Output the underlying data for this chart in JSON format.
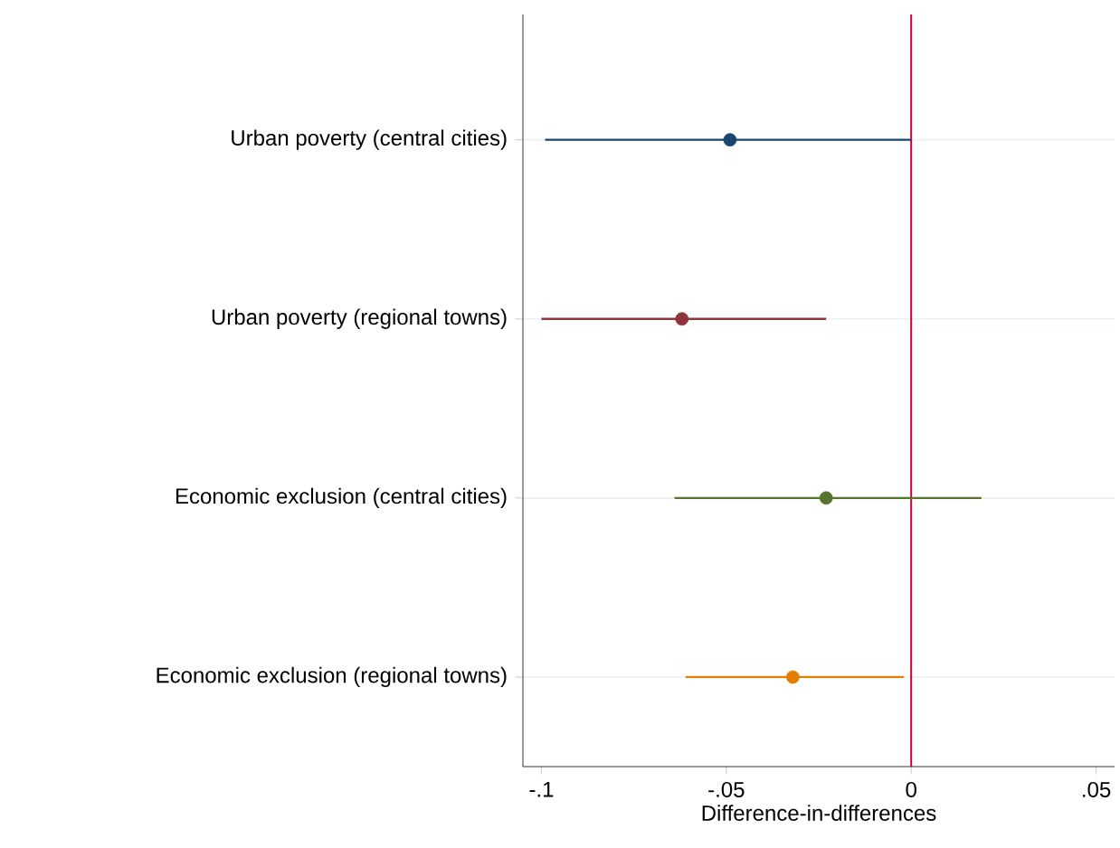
{
  "chart_data": {
    "type": "scatter",
    "orientation": "horizontal",
    "xlabel": "Difference-in-differences",
    "categories": [
      "Urban poverty (central cities)",
      "Urban poverty (regional towns)",
      "Economic exclusion (central cities)",
      "Economic exclusion (regional towns)"
    ],
    "values": [
      -0.049,
      -0.062,
      -0.023,
      -0.032
    ],
    "errors": [
      [
        -0.099,
        0.0
      ],
      [
        -0.1,
        -0.023
      ],
      [
        -0.064,
        0.019
      ],
      [
        -0.061,
        -0.002
      ]
    ],
    "colors": [
      "#1a476f",
      "#90353b",
      "#55752f",
      "#e37e00"
    ],
    "marker": "circle",
    "xlim": [
      -0.105,
      0.055
    ],
    "xticks": [
      {
        "value": -0.1,
        "label": "-.1"
      },
      {
        "value": -0.05,
        "label": "-.05"
      },
      0,
      {
        "value": 0.05,
        "label": ".05"
      }
    ],
    "ref_lines": [
      {
        "axis": "x",
        "value": 0,
        "color": "#c10534"
      }
    ],
    "grid": "y"
  }
}
